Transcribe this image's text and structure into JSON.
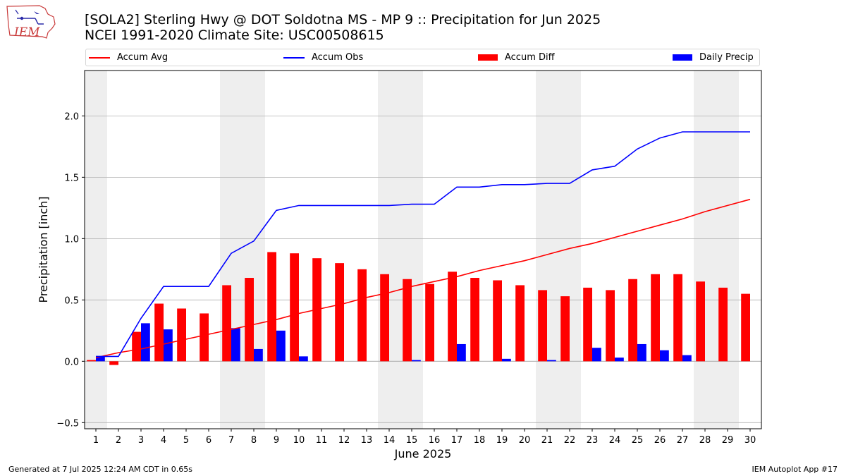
{
  "title_line1": "[SOLA2] Sterling Hwy @ DOT Soldotna MS  - MP 9 :: Precipitation for Jun 2025",
  "title_line2": "NCEI 1991-2020 Climate Site: USC00508615",
  "logo_text": "IEM",
  "footer_left": "Generated at 7 Jul 2025 12:24 AM CDT in 0.65s",
  "footer_right": "IEM Autoplot App #17",
  "colors": {
    "avg": "#ff0000",
    "obs": "#0000ff",
    "diff": "#ff0000",
    "daily": "#0000ff",
    "weekend": "#eeeeee",
    "grid": "#b0b0b0"
  },
  "chart_data": {
    "type": "bar+line",
    "xlabel": "June 2025",
    "ylabel": "Precipitation [inch]",
    "x": [
      1,
      2,
      3,
      4,
      5,
      6,
      7,
      8,
      9,
      10,
      11,
      12,
      13,
      14,
      15,
      16,
      17,
      18,
      19,
      20,
      21,
      22,
      23,
      24,
      25,
      26,
      27,
      28,
      29,
      30
    ],
    "xlim": [
      0.5,
      30.5
    ],
    "ylim": [
      -0.55,
      2.37
    ],
    "yticks": [
      -0.5,
      0.0,
      0.5,
      1.0,
      1.5,
      2.0
    ],
    "ytick_labels": [
      "−0.5",
      "0.0",
      "0.5",
      "1.0",
      "1.5",
      "2.0"
    ],
    "grid": "horizontal",
    "legend_position": "top",
    "shaded_weekends": [
      [
        1,
        1
      ],
      [
        7,
        8
      ],
      [
        14,
        15
      ],
      [
        21,
        22
      ],
      [
        28,
        29
      ]
    ],
    "series": [
      {
        "name": "Accum Avg",
        "type": "line",
        "values": [
          0.03,
          0.07,
          0.1,
          0.14,
          0.18,
          0.22,
          0.26,
          0.3,
          0.34,
          0.39,
          0.43,
          0.47,
          0.52,
          0.56,
          0.61,
          0.65,
          0.69,
          0.74,
          0.78,
          0.82,
          0.87,
          0.92,
          0.96,
          1.01,
          1.06,
          1.11,
          1.16,
          1.22,
          1.27,
          1.32
        ]
      },
      {
        "name": "Accum Obs",
        "type": "line",
        "values": [
          0.04,
          0.04,
          0.35,
          0.61,
          0.61,
          0.61,
          0.88,
          0.98,
          1.23,
          1.27,
          1.27,
          1.27,
          1.27,
          1.27,
          1.28,
          1.28,
          1.42,
          1.42,
          1.44,
          1.44,
          1.45,
          1.45,
          1.56,
          1.59,
          1.73,
          1.82,
          1.87,
          1.87,
          1.87,
          1.87
        ]
      },
      {
        "name": "Accum Diff",
        "type": "bar",
        "values": [
          0.01,
          -0.03,
          0.24,
          0.47,
          0.43,
          0.39,
          0.62,
          0.68,
          0.89,
          0.88,
          0.84,
          0.8,
          0.75,
          0.71,
          0.67,
          0.63,
          0.73,
          0.68,
          0.66,
          0.62,
          0.58,
          0.53,
          0.6,
          0.58,
          0.67,
          0.71,
          0.71,
          0.65,
          0.6,
          0.55
        ]
      },
      {
        "name": "Daily Precip",
        "type": "bar",
        "values": [
          0.04,
          0.0,
          0.31,
          0.26,
          0.0,
          0.0,
          0.27,
          0.1,
          0.25,
          0.04,
          0.0,
          0.0,
          0.0,
          0.0,
          0.01,
          0.0,
          0.14,
          0.0,
          0.02,
          0.0,
          0.01,
          0.0,
          0.11,
          0.03,
          0.14,
          0.09,
          0.05,
          0.0,
          0.0,
          0.0
        ]
      }
    ]
  }
}
